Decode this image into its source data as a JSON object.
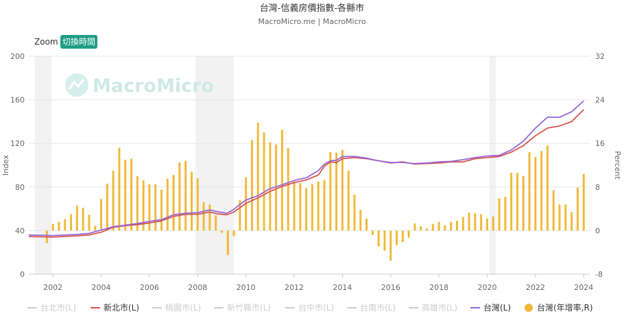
{
  "title": "台灣-信義房價指數-各縣市",
  "subtitle": "MacroMicro.me | MacroMicro",
  "watermark": "MacroMicro",
  "zoom": {
    "label": "Zoom",
    "button": "切換時間"
  },
  "chart_data": {
    "type": "line",
    "title": "台灣-信義房價指數-各縣市",
    "subtitle": "MacroMicro.me | MacroMicro",
    "xlim": [
      2001.0,
      2024.25
    ],
    "x_ticks": [
      "2002",
      "2004",
      "2006",
      "2008",
      "2010",
      "2012",
      "2014",
      "2016",
      "2018",
      "2020",
      "2022",
      "2024"
    ],
    "left_axis": {
      "label": "Index",
      "ylim": [
        0,
        200
      ],
      "ticks": [
        "0",
        "40",
        "80",
        "120",
        "160",
        "200"
      ]
    },
    "right_axis": {
      "label": "Percent",
      "ylim": [
        -8,
        32
      ],
      "ticks": [
        "-8",
        "0",
        "8",
        "16",
        "24",
        "32"
      ]
    },
    "recession_bands": [
      [
        2001.25,
        2001.95
      ],
      [
        2007.9,
        2009.5
      ],
      [
        2020.1,
        2020.35
      ]
    ],
    "grid": true,
    "legend_position": "bottom",
    "legend": [
      {
        "name": "台北市(L)",
        "color": "#cccccc",
        "symbol": "line",
        "active": false
      },
      {
        "name": "新北市(L)",
        "color": "#d9534f",
        "symbol": "line",
        "active": true
      },
      {
        "name": "桃園市(L)",
        "color": "#cccccc",
        "symbol": "line",
        "active": false
      },
      {
        "name": "新竹縣市(L)",
        "color": "#cccccc",
        "symbol": "line",
        "active": false
      },
      {
        "name": "台中市(L)",
        "color": "#cccccc",
        "symbol": "line",
        "active": false
      },
      {
        "name": "台南市(L)",
        "color": "#cccccc",
        "symbol": "line",
        "active": false
      },
      {
        "name": "高雄市(L)",
        "color": "#cccccc",
        "symbol": "line",
        "active": false
      },
      {
        "name": "台灣(L)",
        "color": "#9467d8",
        "symbol": "line",
        "active": true
      },
      {
        "name": "台灣(年增率,R)",
        "color": "#f0b93a",
        "symbol": "dot",
        "active": true
      }
    ],
    "series": [
      {
        "name": "台灣(年增率,R)",
        "type": "bar",
        "axis": "right",
        "color": "#f0b93a",
        "x": [
          2001.75,
          2002.0,
          2002.25,
          2002.5,
          2002.75,
          2003.0,
          2003.25,
          2003.5,
          2003.75,
          2004.0,
          2004.25,
          2004.5,
          2004.75,
          2005.0,
          2005.25,
          2005.5,
          2005.75,
          2006.0,
          2006.25,
          2006.5,
          2006.75,
          2007.0,
          2007.25,
          2007.5,
          2007.75,
          2008.0,
          2008.25,
          2008.5,
          2008.75,
          2009.0,
          2009.25,
          2009.5,
          2009.75,
          2010.0,
          2010.25,
          2010.5,
          2010.75,
          2011.0,
          2011.25,
          2011.5,
          2011.75,
          2012.0,
          2012.25,
          2012.5,
          2012.75,
          2013.0,
          2013.25,
          2013.5,
          2013.75,
          2014.0,
          2014.25,
          2014.5,
          2014.75,
          2015.0,
          2015.25,
          2015.5,
          2015.75,
          2016.0,
          2016.25,
          2016.5,
          2016.75,
          2017.0,
          2017.25,
          2017.5,
          2017.75,
          2018.0,
          2018.25,
          2018.5,
          2018.75,
          2019.0,
          2019.25,
          2019.5,
          2019.75,
          2020.0,
          2020.25,
          2020.5,
          2020.75,
          2021.0,
          2021.25,
          2021.5,
          2021.75,
          2022.0,
          2022.25,
          2022.5,
          2022.75,
          2023.0,
          2023.25,
          2023.5,
          2023.75,
          2024.0
        ],
        "values": [
          -2.3,
          1.2,
          1.6,
          2.1,
          3.0,
          4.6,
          4.2,
          2.9,
          0.9,
          5.8,
          8.6,
          11.0,
          15.2,
          13.0,
          13.2,
          10.0,
          9.2,
          8.5,
          8.5,
          7.5,
          9.5,
          10.2,
          12.5,
          12.8,
          10.8,
          9.6,
          5.2,
          4.8,
          2.8,
          -0.4,
          -4.5,
          -1.0,
          5.6,
          9.8,
          16.6,
          19.8,
          18.0,
          16.2,
          15.8,
          18.5,
          15.1,
          9.0,
          8.7,
          7.8,
          8.5,
          9.0,
          9.3,
          14.4,
          14.3,
          14.8,
          11.0,
          6.6,
          3.8,
          2.2,
          -0.8,
          -2.9,
          -3.7,
          -5.5,
          -2.7,
          -2.1,
          -1.3,
          1.3,
          0.8,
          0.4,
          1.2,
          1.6,
          1.0,
          1.6,
          1.8,
          2.5,
          3.3,
          3.2,
          3.0,
          2.2,
          2.6,
          5.9,
          6.2,
          10.6,
          10.6,
          10.0,
          14.4,
          13.5,
          14.6,
          15.6,
          7.4,
          4.8,
          4.8,
          3.4,
          7.9,
          10.4
        ]
      },
      {
        "name": "新北市(L)",
        "type": "line",
        "axis": "left",
        "color": "#d9534f",
        "x": [
          2001.0,
          2002.0,
          2003.0,
          2003.5,
          2004.0,
          2004.5,
          2005.0,
          2005.5,
          2006.0,
          2006.5,
          2007.0,
          2007.5,
          2008.0,
          2008.5,
          2008.8,
          2009.2,
          2009.5,
          2009.75,
          2010.0,
          2010.5,
          2011.0,
          2011.5,
          2012.0,
          2012.5,
          2013.0,
          2013.25,
          2013.5,
          2013.75,
          2014.0,
          2014.5,
          2015.0,
          2015.5,
          2016.0,
          2016.5,
          2017.0,
          2017.5,
          2018.0,
          2018.5,
          2019.0,
          2019.5,
          2020.0,
          2020.5,
          2021.0,
          2021.5,
          2022.0,
          2022.5,
          2023.0,
          2023.5,
          2024.0
        ],
        "values": [
          34.5,
          34.0,
          35.2,
          36.0,
          38.5,
          43.0,
          44.5,
          45.5,
          47.0,
          49.0,
          53.0,
          55.0,
          55.0,
          57.0,
          55.5,
          54.5,
          57.0,
          61.0,
          65.0,
          70.0,
          76.0,
          80.5,
          84.0,
          86.5,
          91.0,
          99.0,
          103.0,
          102.5,
          106.0,
          107.0,
          106.0,
          104.0,
          102.0,
          103.0,
          101.0,
          101.5,
          102.0,
          103.0,
          103.0,
          106.0,
          107.0,
          108.0,
          112.0,
          118.0,
          127.0,
          134.0,
          136.0,
          140.0,
          151.0
        ]
      },
      {
        "name": "台灣(L)",
        "type": "line",
        "axis": "left",
        "color": "#9467d8",
        "x": [
          2001.0,
          2002.0,
          2003.0,
          2003.5,
          2004.0,
          2004.5,
          2005.0,
          2005.5,
          2006.0,
          2006.5,
          2007.0,
          2007.5,
          2008.0,
          2008.5,
          2008.8,
          2009.2,
          2009.5,
          2009.75,
          2010.0,
          2010.5,
          2011.0,
          2011.5,
          2012.0,
          2012.5,
          2013.0,
          2013.25,
          2013.5,
          2013.75,
          2014.0,
          2014.5,
          2015.0,
          2015.5,
          2016.0,
          2016.5,
          2017.0,
          2017.5,
          2018.0,
          2018.5,
          2019.0,
          2019.5,
          2020.0,
          2020.5,
          2021.0,
          2021.5,
          2022.0,
          2022.5,
          2023.0,
          2023.5,
          2024.0
        ],
        "values": [
          36.0,
          35.5,
          36.5,
          37.5,
          40.5,
          43.5,
          45.0,
          46.5,
          48.5,
          50.0,
          54.5,
          56.0,
          56.5,
          59.0,
          57.5,
          56.0,
          59.5,
          64.0,
          68.0,
          72.0,
          78.5,
          82.0,
          86.0,
          88.5,
          95.0,
          101.0,
          104.0,
          104.5,
          108.0,
          108.0,
          106.5,
          104.0,
          102.5,
          102.5,
          101.5,
          102.0,
          103.0,
          103.5,
          105.0,
          107.0,
          108.5,
          109.0,
          114.0,
          122.0,
          134.0,
          144.0,
          144.0,
          149.0,
          159.0
        ]
      }
    ]
  }
}
